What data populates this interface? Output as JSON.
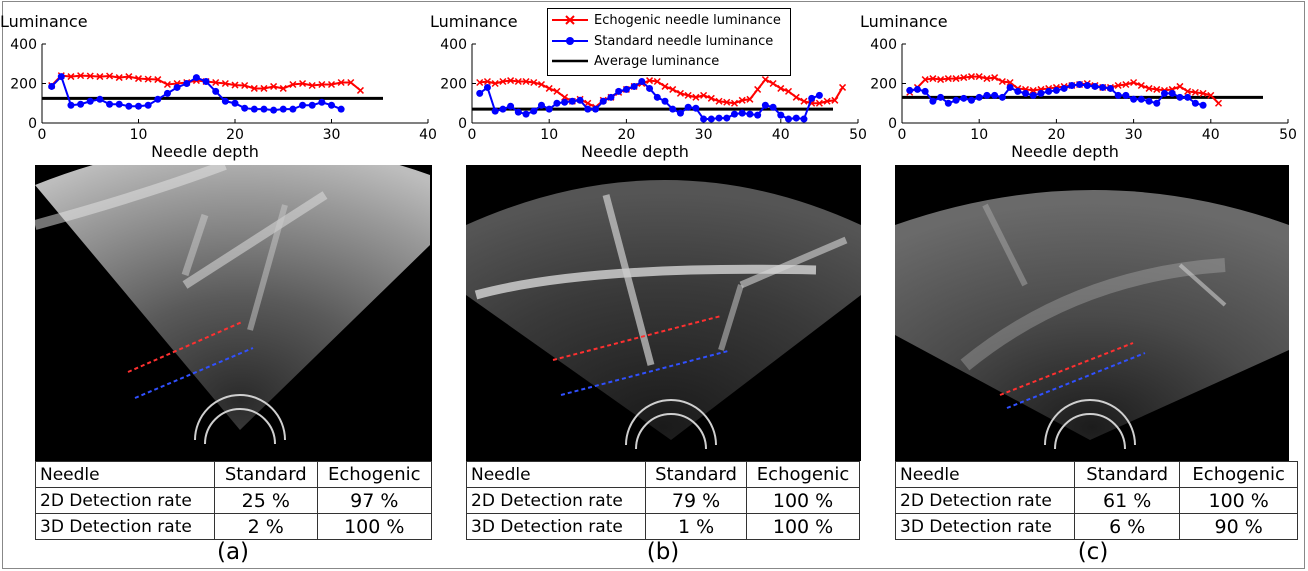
{
  "ylabel": "Luminance",
  "xlabel": "Needle depth",
  "legend": {
    "items": [
      {
        "label": "Echogenic needle luminance",
        "color": "#ff0000",
        "marker": "x"
      },
      {
        "label": "Standard needle luminance",
        "color": "#0000ff",
        "marker": "o"
      },
      {
        "label": "Average luminance",
        "color": "#000000",
        "marker": "none"
      }
    ]
  },
  "table_headers": [
    "Needle",
    "Standard",
    "Echogenic"
  ],
  "row_labels": [
    "2D Detection rate",
    "3D Detection rate"
  ],
  "panels": [
    {
      "label": "(a)",
      "rates": {
        "std_2d": "25 %",
        "echo_2d": "97 %",
        "std_3d": "2 %",
        "echo_3d": "100 %"
      }
    },
    {
      "label": "(b)",
      "rates": {
        "std_2d": "79 %",
        "echo_2d": "100 %",
        "std_3d": "1 %",
        "echo_3d": "100 %"
      }
    },
    {
      "label": "(c)",
      "rates": {
        "std_2d": "61 %",
        "echo_2d": "100 %",
        "std_3d": "6 %",
        "echo_3d": "90 %"
      }
    }
  ],
  "chart_data": [
    {
      "type": "line",
      "ylabel": "Luminance",
      "xlabel": "Needle depth",
      "xlim": [
        0,
        40
      ],
      "ylim": [
        0,
        400
      ],
      "xticks": [
        0,
        10,
        20,
        30,
        40
      ],
      "yticks": [
        0,
        200,
        400
      ],
      "average": 125,
      "series": [
        {
          "name": "Echogenic needle luminance",
          "color": "#ff0000",
          "x": [
            1,
            2,
            3,
            4,
            5,
            6,
            7,
            8,
            9,
            10,
            11,
            12,
            13,
            14,
            15,
            16,
            17,
            18,
            19,
            20,
            21,
            22,
            23,
            24,
            25,
            26,
            27,
            28,
            29,
            30,
            31,
            32,
            33
          ],
          "y": [
            190,
            240,
            235,
            240,
            238,
            235,
            238,
            230,
            235,
            225,
            222,
            220,
            195,
            200,
            205,
            215,
            210,
            205,
            200,
            192,
            190,
            175,
            175,
            185,
            175,
            195,
            200,
            190,
            195,
            195,
            205,
            205,
            165
          ]
        },
        {
          "name": "Standard needle luminance",
          "color": "#0000ff",
          "x": [
            1,
            2,
            3,
            4,
            5,
            6,
            7,
            8,
            9,
            10,
            11,
            12,
            13,
            14,
            15,
            16,
            17,
            18,
            19,
            20,
            21,
            22,
            23,
            24,
            25,
            26,
            27,
            28,
            29,
            30,
            31
          ],
          "y": [
            185,
            235,
            90,
            95,
            110,
            120,
            95,
            95,
            85,
            85,
            90,
            120,
            150,
            180,
            200,
            230,
            210,
            160,
            110,
            100,
            75,
            70,
            70,
            65,
            70,
            70,
            90,
            90,
            105,
            90,
            70
          ]
        }
      ]
    },
    {
      "type": "line",
      "ylabel": "Luminance",
      "xlabel": "Needle depth",
      "xlim": [
        0,
        50
      ],
      "ylim": [
        0,
        400
      ],
      "xticks": [
        0,
        10,
        20,
        30,
        40,
        50
      ],
      "yticks": [
        0,
        200,
        400
      ],
      "average": 70,
      "series": [
        {
          "name": "Echogenic needle luminance",
          "color": "#ff0000",
          "x": [
            1,
            2,
            3,
            4,
            5,
            6,
            7,
            8,
            9,
            10,
            11,
            12,
            13,
            14,
            15,
            16,
            17,
            18,
            19,
            20,
            21,
            22,
            23,
            24,
            25,
            26,
            27,
            28,
            29,
            30,
            31,
            32,
            33,
            34,
            35,
            36,
            37,
            38,
            39,
            40,
            41,
            42,
            43,
            44,
            45,
            46,
            47,
            48
          ],
          "y": [
            205,
            210,
            200,
            210,
            215,
            210,
            210,
            205,
            195,
            175,
            160,
            130,
            110,
            120,
            100,
            80,
            115,
            130,
            155,
            170,
            185,
            200,
            215,
            210,
            185,
            170,
            150,
            140,
            130,
            140,
            125,
            110,
            105,
            100,
            115,
            120,
            170,
            220,
            200,
            175,
            160,
            130,
            110,
            100,
            100,
            110,
            115,
            180
          ]
        },
        {
          "name": "Standard needle luminance",
          "color": "#0000ff",
          "x": [
            1,
            2,
            3,
            4,
            5,
            6,
            7,
            8,
            9,
            10,
            11,
            12,
            13,
            14,
            15,
            16,
            17,
            18,
            19,
            20,
            21,
            22,
            23,
            24,
            25,
            26,
            27,
            28,
            29,
            30,
            31,
            32,
            33,
            34,
            35,
            36,
            37,
            38,
            39,
            40,
            41,
            42,
            43,
            44,
            45
          ],
          "y": [
            150,
            180,
            60,
            70,
            85,
            55,
            45,
            60,
            90,
            70,
            100,
            105,
            110,
            115,
            70,
            70,
            110,
            130,
            160,
            170,
            185,
            210,
            175,
            130,
            110,
            70,
            50,
            80,
            75,
            20,
            20,
            25,
            25,
            45,
            50,
            45,
            40,
            90,
            80,
            40,
            20,
            25,
            20,
            125,
            140
          ]
        }
      ]
    },
    {
      "type": "line",
      "ylabel": "Luminance",
      "xlabel": "Needle depth",
      "xlim": [
        0,
        50
      ],
      "ylim": [
        0,
        400
      ],
      "xticks": [
        0,
        10,
        20,
        30,
        40,
        50
      ],
      "yticks": [
        0,
        200,
        400
      ],
      "average": 130,
      "series": [
        {
          "name": "Echogenic needle luminance",
          "color": "#ff0000",
          "x": [
            1,
            2,
            3,
            4,
            5,
            6,
            7,
            8,
            9,
            10,
            11,
            12,
            13,
            14,
            15,
            16,
            17,
            18,
            19,
            20,
            21,
            22,
            23,
            24,
            25,
            26,
            27,
            28,
            29,
            30,
            31,
            32,
            33,
            34,
            35,
            36,
            37,
            38,
            39,
            40,
            41
          ],
          "y": [
            155,
            180,
            220,
            225,
            220,
            225,
            225,
            230,
            235,
            235,
            225,
            230,
            210,
            205,
            175,
            170,
            165,
            170,
            175,
            180,
            185,
            190,
            195,
            200,
            190,
            180,
            180,
            190,
            195,
            205,
            190,
            175,
            170,
            165,
            170,
            185,
            160,
            155,
            150,
            140,
            100
          ]
        },
        {
          "name": "Standard needle luminance",
          "color": "#0000ff",
          "x": [
            1,
            2,
            3,
            4,
            5,
            6,
            7,
            8,
            9,
            10,
            11,
            12,
            13,
            14,
            15,
            16,
            17,
            18,
            19,
            20,
            21,
            22,
            23,
            24,
            25,
            26,
            27,
            28,
            29,
            30,
            31,
            32,
            33,
            34,
            35,
            36,
            37,
            38,
            39
          ],
          "y": [
            165,
            170,
            160,
            110,
            130,
            100,
            115,
            125,
            115,
            130,
            140,
            140,
            130,
            180,
            160,
            150,
            140,
            150,
            160,
            165,
            175,
            190,
            195,
            190,
            185,
            180,
            175,
            140,
            140,
            120,
            120,
            110,
            100,
            150,
            150,
            130,
            130,
            100,
            90
          ]
        }
      ]
    }
  ]
}
